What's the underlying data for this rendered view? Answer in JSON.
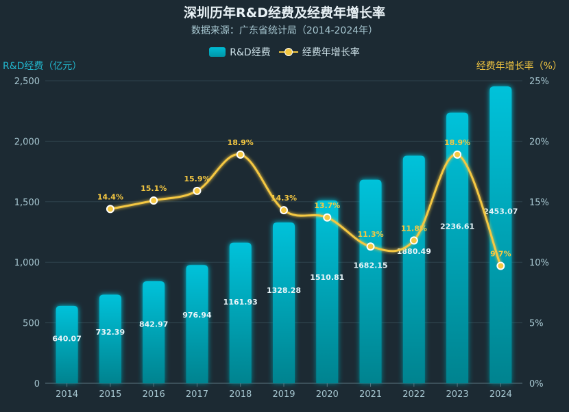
{
  "chart_data": {
    "type": "bar",
    "title": "深圳历年R&D经费及经费年增长率",
    "subtitle": "数据来源：广东省统计局（2014-2024年）",
    "categories": [
      "2014",
      "2015",
      "2016",
      "2017",
      "2018",
      "2019",
      "2020",
      "2021",
      "2022",
      "2023",
      "2024"
    ],
    "series": [
      {
        "name": "R&D经费",
        "type": "bar",
        "axis": "left",
        "values": [
          640.07,
          732.39,
          842.97,
          976.94,
          1161.93,
          1328.28,
          1510.81,
          1682.15,
          1880.49,
          2236.61,
          2453.07
        ],
        "labels": [
          "640.07",
          "732.39",
          "842.97",
          "976.94",
          "1161.93",
          "1328.28",
          "1510.81",
          "1682.15",
          "1880.49",
          "2236.61",
          "2453.07"
        ],
        "color": "#00bcd4"
      },
      {
        "name": "经费年增长率",
        "type": "line",
        "axis": "right",
        "values": [
          null,
          14.4,
          15.1,
          15.9,
          18.9,
          14.3,
          13.7,
          11.3,
          11.8,
          18.9,
          9.7
        ],
        "labels": [
          null,
          "14.4%",
          "15.1%",
          "15.9%",
          "18.9%",
          "14.3%",
          "13.7%",
          "11.3%",
          "11.8%",
          "18.9%",
          "9.7%"
        ],
        "color": "#f5c842"
      }
    ],
    "ylabel": "R&D经费（亿元）",
    "ylabel_right": "经费年增长率（%）",
    "ylim": [
      0,
      2500
    ],
    "ylim_right": [
      0,
      25
    ],
    "yticks": [
      0,
      500,
      1000,
      1500,
      2000,
      2500
    ],
    "ytick_labels": [
      "0",
      "500",
      "1,000",
      "1,500",
      "2,000",
      "2,500"
    ],
    "yticks_right": [
      0,
      5,
      10,
      15,
      20,
      25
    ],
    "ytick_labels_right": [
      "0%",
      "5%",
      "10%",
      "15%",
      "20%",
      "25%"
    ],
    "grid": true,
    "legend": "top-center"
  },
  "colors": {
    "background": "#1c2a33",
    "bar": "#00bcd4",
    "line": "#f5c842",
    "left_axis_title": "#22b8cf",
    "right_axis_title": "#f5c842"
  }
}
